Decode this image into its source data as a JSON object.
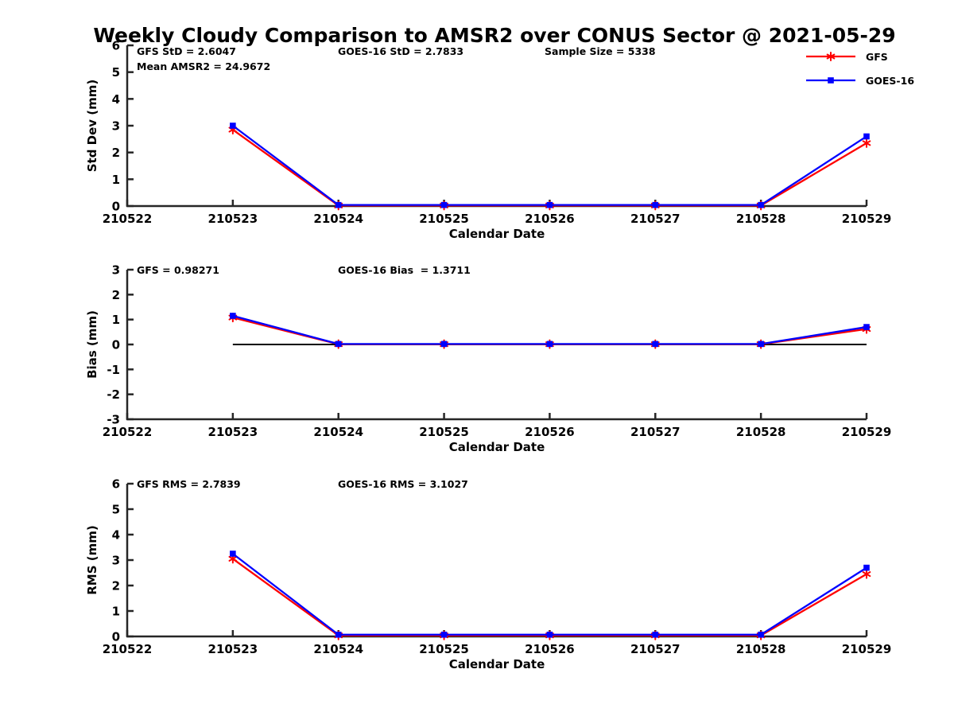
{
  "title": "Weekly Cloudy Comparison to AMSR2 over CONUS Sector @ 2021-05-29",
  "colors": {
    "gfs": "#ff0000",
    "goes16": "#0000ff",
    "axis": "#262626",
    "text": "#000000",
    "zero_line": "#000000",
    "background": "#ffffff"
  },
  "legend": {
    "position": "top-right",
    "items": [
      {
        "label": "GFS",
        "color": "#ff0000",
        "marker": "asterisk"
      },
      {
        "label": "GOES-16",
        "color": "#0000ff",
        "marker": "square"
      }
    ]
  },
  "chart_data": [
    {
      "id": "std-dev",
      "type": "line",
      "ylabel": "Std Dev (mm)",
      "xlabel": "Calendar Date",
      "ylim": [
        0,
        6
      ],
      "yticks": [
        0,
        1,
        2,
        3,
        4,
        5,
        6
      ],
      "xticks": [
        "210522",
        "210523",
        "210524",
        "210525",
        "210526",
        "210527",
        "210528",
        "210529"
      ],
      "x": [
        "210523",
        "210524",
        "210525",
        "210526",
        "210527",
        "210528",
        "210529"
      ],
      "grid": false,
      "zero_line": false,
      "series": [
        {
          "name": "GFS",
          "color": "#ff0000",
          "marker": "asterisk",
          "values": [
            2.85,
            0.02,
            0.02,
            0.02,
            0.02,
            0.02,
            2.35
          ]
        },
        {
          "name": "GOES-16",
          "color": "#0000ff",
          "marker": "square",
          "values": [
            3.0,
            0.04,
            0.04,
            0.04,
            0.04,
            0.04,
            2.6
          ]
        }
      ],
      "annotations": [
        {
          "text": "GFS StD = 2.6047",
          "col": 0,
          "row": 0
        },
        {
          "text": "GOES-16 StD = 2.7833",
          "col": 1,
          "row": 0
        },
        {
          "text": "Sample Size = 5338",
          "col": 2,
          "row": 0
        },
        {
          "text": "Mean AMSR2 = 24.9672",
          "col": 0,
          "row": 1
        }
      ]
    },
    {
      "id": "bias",
      "type": "line",
      "ylabel": "Bias (mm)",
      "xlabel": "Calendar Date",
      "ylim": [
        -3,
        3
      ],
      "yticks": [
        -3,
        -2,
        -1,
        0,
        1,
        2,
        3
      ],
      "xticks": [
        "210522",
        "210523",
        "210524",
        "210525",
        "210526",
        "210527",
        "210528",
        "210529"
      ],
      "x": [
        "210523",
        "210524",
        "210525",
        "210526",
        "210527",
        "210528",
        "210529"
      ],
      "grid": false,
      "zero_line": true,
      "series": [
        {
          "name": "GFS",
          "color": "#ff0000",
          "marker": "asterisk",
          "values": [
            1.08,
            0.01,
            0.01,
            0.01,
            0.01,
            0.01,
            0.62
          ]
        },
        {
          "name": "GOES-16",
          "color": "#0000ff",
          "marker": "square",
          "values": [
            1.15,
            0.02,
            0.02,
            0.02,
            0.02,
            0.02,
            0.7
          ]
        }
      ],
      "annotations": [
        {
          "text": "GFS = 0.98271",
          "col": 0,
          "row": 0
        },
        {
          "text": "GOES-16 Bias  = 1.3711",
          "col": 1,
          "row": 0
        }
      ]
    },
    {
      "id": "rms",
      "type": "line",
      "ylabel": "RMS (mm)",
      "xlabel": "Calendar Date",
      "ylim": [
        0,
        6
      ],
      "yticks": [
        0,
        1,
        2,
        3,
        4,
        5,
        6
      ],
      "xticks": [
        "210522",
        "210523",
        "210524",
        "210525",
        "210526",
        "210527",
        "210528",
        "210529"
      ],
      "x": [
        "210523",
        "210524",
        "210525",
        "210526",
        "210527",
        "210528",
        "210529"
      ],
      "grid": false,
      "zero_line": false,
      "series": [
        {
          "name": "GFS",
          "color": "#ff0000",
          "marker": "asterisk",
          "values": [
            3.05,
            0.04,
            0.04,
            0.04,
            0.04,
            0.04,
            2.45
          ]
        },
        {
          "name": "GOES-16",
          "color": "#0000ff",
          "marker": "square",
          "values": [
            3.25,
            0.07,
            0.07,
            0.07,
            0.07,
            0.07,
            2.7
          ]
        }
      ],
      "annotations": [
        {
          "text": "GFS RMS = 2.7839",
          "col": 0,
          "row": 0
        },
        {
          "text": "GOES-16 RMS = 3.1027",
          "col": 1,
          "row": 0
        }
      ]
    }
  ]
}
